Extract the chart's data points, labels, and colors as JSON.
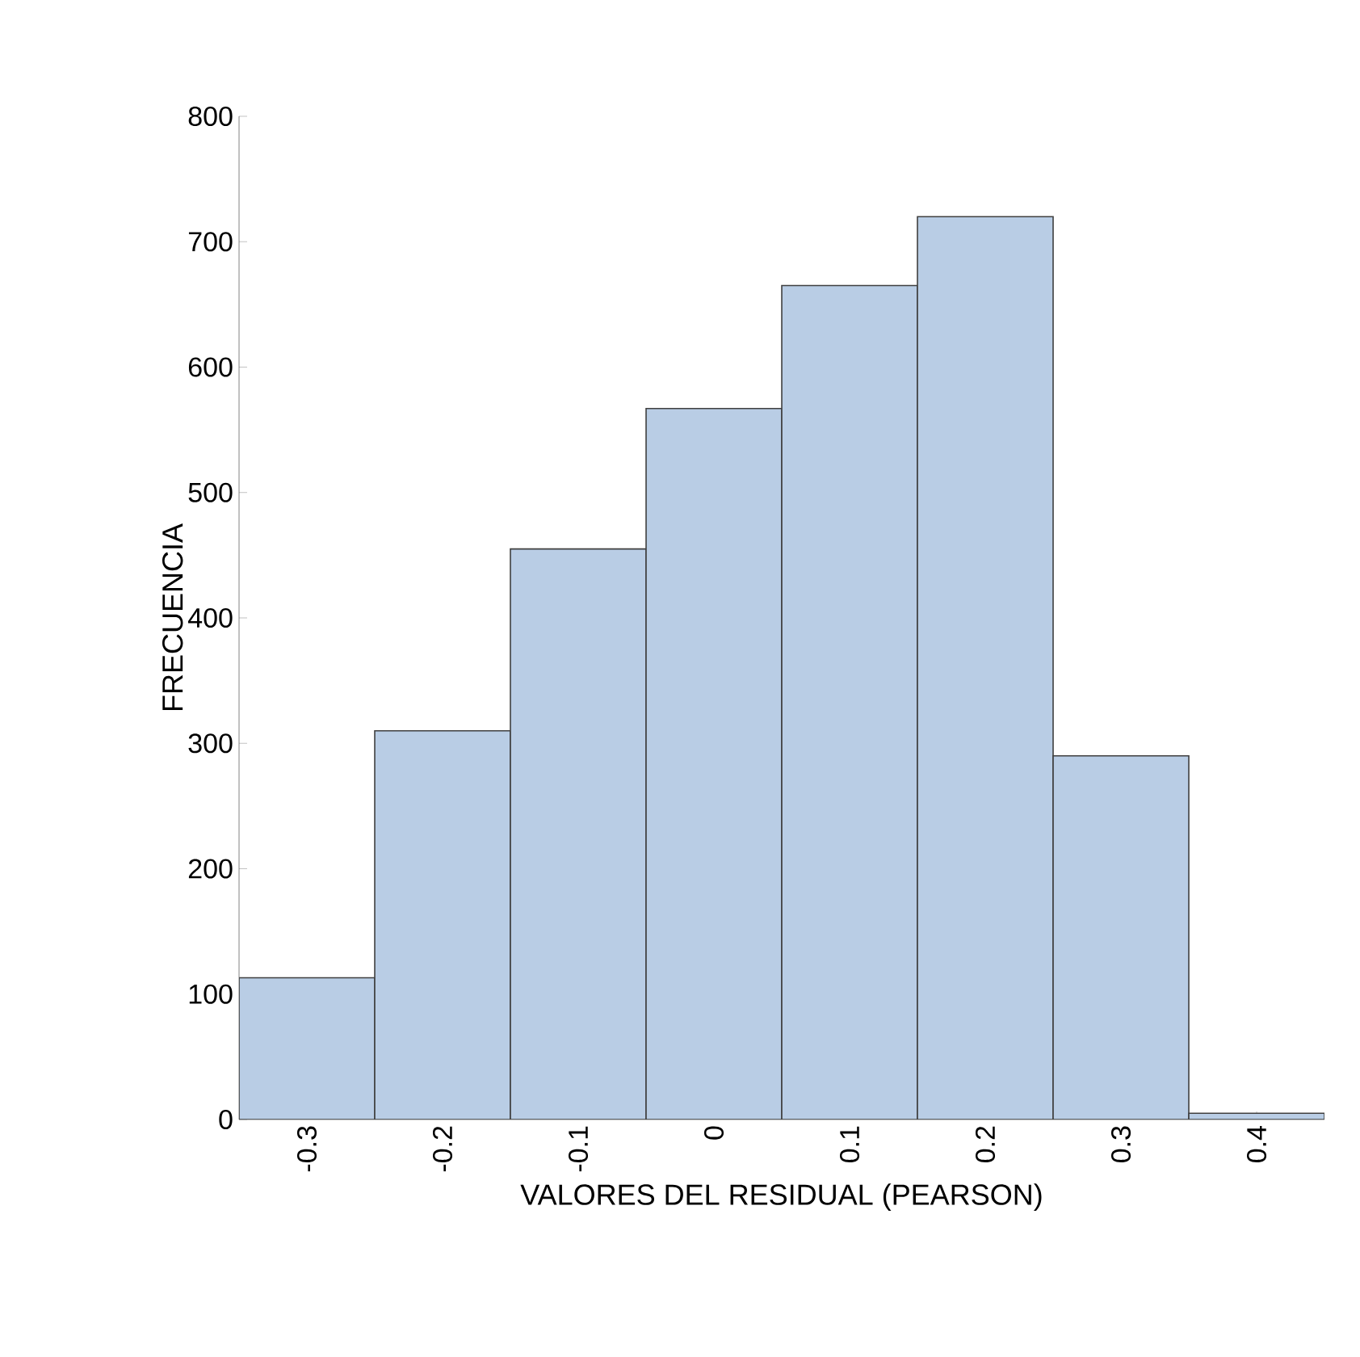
{
  "chart_data": {
    "type": "bar",
    "xlabel": "VALORES DEL RESIDUAL (PEARSON)",
    "ylabel": "FRECUENCIA",
    "categories": [
      "-0.3",
      "-0.2",
      "-0.1",
      "0",
      "0.1",
      "0.2",
      "0.3",
      "0.4"
    ],
    "values": [
      113,
      310,
      455,
      567,
      665,
      720,
      290,
      5
    ],
    "color": "#b9cde5",
    "ylim": [
      0,
      800
    ],
    "yticks": [
      0,
      100,
      200,
      300,
      400,
      500,
      600,
      700,
      800
    ]
  }
}
